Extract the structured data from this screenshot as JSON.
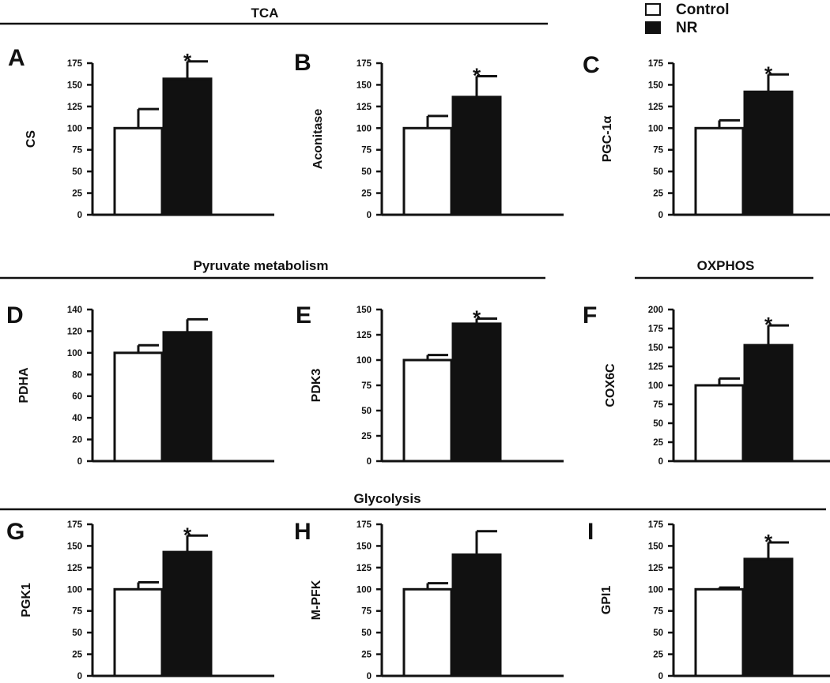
{
  "colors": {
    "control": "#ffffff",
    "nr": "#111111",
    "axis": "#111111"
  },
  "legend": [
    {
      "name": "Control",
      "color": "#ffffff"
    },
    {
      "name": "NR",
      "color": "#111111"
    }
  ],
  "section_titles": {
    "tca": "TCA",
    "pyruvate": "Pyruvate  metabolism",
    "oxphos": "OXPHOS",
    "glycolysis": "Glycolysis"
  },
  "chart_data": [
    {
      "id": "A",
      "type": "bar",
      "ylabel": "CS",
      "ylim": [
        0,
        175
      ],
      "yticks": [
        0,
        25,
        50,
        75,
        100,
        125,
        150,
        175
      ],
      "categories": [
        "Control",
        "NR"
      ],
      "values": [
        100,
        157
      ],
      "errors": [
        22,
        20
      ],
      "significant": true
    },
    {
      "id": "B",
      "type": "bar",
      "ylabel": "Aconitase",
      "ylim": [
        0,
        175
      ],
      "yticks": [
        0,
        25,
        50,
        75,
        100,
        125,
        150,
        175
      ],
      "categories": [
        "Control",
        "NR"
      ],
      "values": [
        100,
        136
      ],
      "errors": [
        14,
        24
      ],
      "significant": true
    },
    {
      "id": "C",
      "type": "bar",
      "ylabel": "PGC-1α",
      "ylim": [
        0,
        175
      ],
      "yticks": [
        0,
        25,
        50,
        75,
        100,
        125,
        150,
        175
      ],
      "categories": [
        "Control",
        "NR"
      ],
      "values": [
        100,
        142
      ],
      "errors": [
        9,
        20
      ],
      "significant": true
    },
    {
      "id": "D",
      "type": "bar",
      "ylabel": "PDHA",
      "ylim": [
        0,
        140
      ],
      "yticks": [
        0,
        20,
        40,
        60,
        80,
        100,
        120,
        140
      ],
      "categories": [
        "Control",
        "NR"
      ],
      "values": [
        100,
        119
      ],
      "errors": [
        7,
        12
      ],
      "significant": false
    },
    {
      "id": "E",
      "type": "bar",
      "ylabel": "PDK3",
      "ylim": [
        0,
        150
      ],
      "yticks": [
        0,
        25,
        50,
        75,
        100,
        125,
        150
      ],
      "categories": [
        "Control",
        "NR"
      ],
      "values": [
        100,
        136
      ],
      "errors": [
        5,
        5
      ],
      "significant": true
    },
    {
      "id": "F",
      "type": "bar",
      "ylabel": "COX6C",
      "ylim": [
        0,
        200
      ],
      "yticks": [
        0,
        25,
        50,
        75,
        100,
        125,
        150,
        175,
        200
      ],
      "categories": [
        "Control",
        "NR"
      ],
      "values": [
        100,
        153
      ],
      "errors": [
        9,
        26
      ],
      "significant": true
    },
    {
      "id": "G",
      "type": "bar",
      "ylabel": "PGK1",
      "ylim": [
        0,
        175
      ],
      "yticks": [
        0,
        25,
        50,
        75,
        100,
        125,
        150,
        175
      ],
      "categories": [
        "Control",
        "NR"
      ],
      "values": [
        100,
        143
      ],
      "errors": [
        8,
        19
      ],
      "significant": true
    },
    {
      "id": "H",
      "type": "bar",
      "ylabel": "M-PFK",
      "ylim": [
        0,
        175
      ],
      "yticks": [
        0,
        25,
        50,
        75,
        100,
        125,
        150,
        175
      ],
      "categories": [
        "Control",
        "NR"
      ],
      "values": [
        100,
        140
      ],
      "errors": [
        7,
        27
      ],
      "significant": false
    },
    {
      "id": "I",
      "type": "bar",
      "ylabel": "GPI1",
      "ylim": [
        0,
        175
      ],
      "yticks": [
        0,
        25,
        50,
        75,
        100,
        125,
        150,
        175
      ],
      "categories": [
        "Control",
        "NR"
      ],
      "values": [
        100,
        135
      ],
      "errors": [
        2,
        19
      ],
      "significant": true
    }
  ]
}
